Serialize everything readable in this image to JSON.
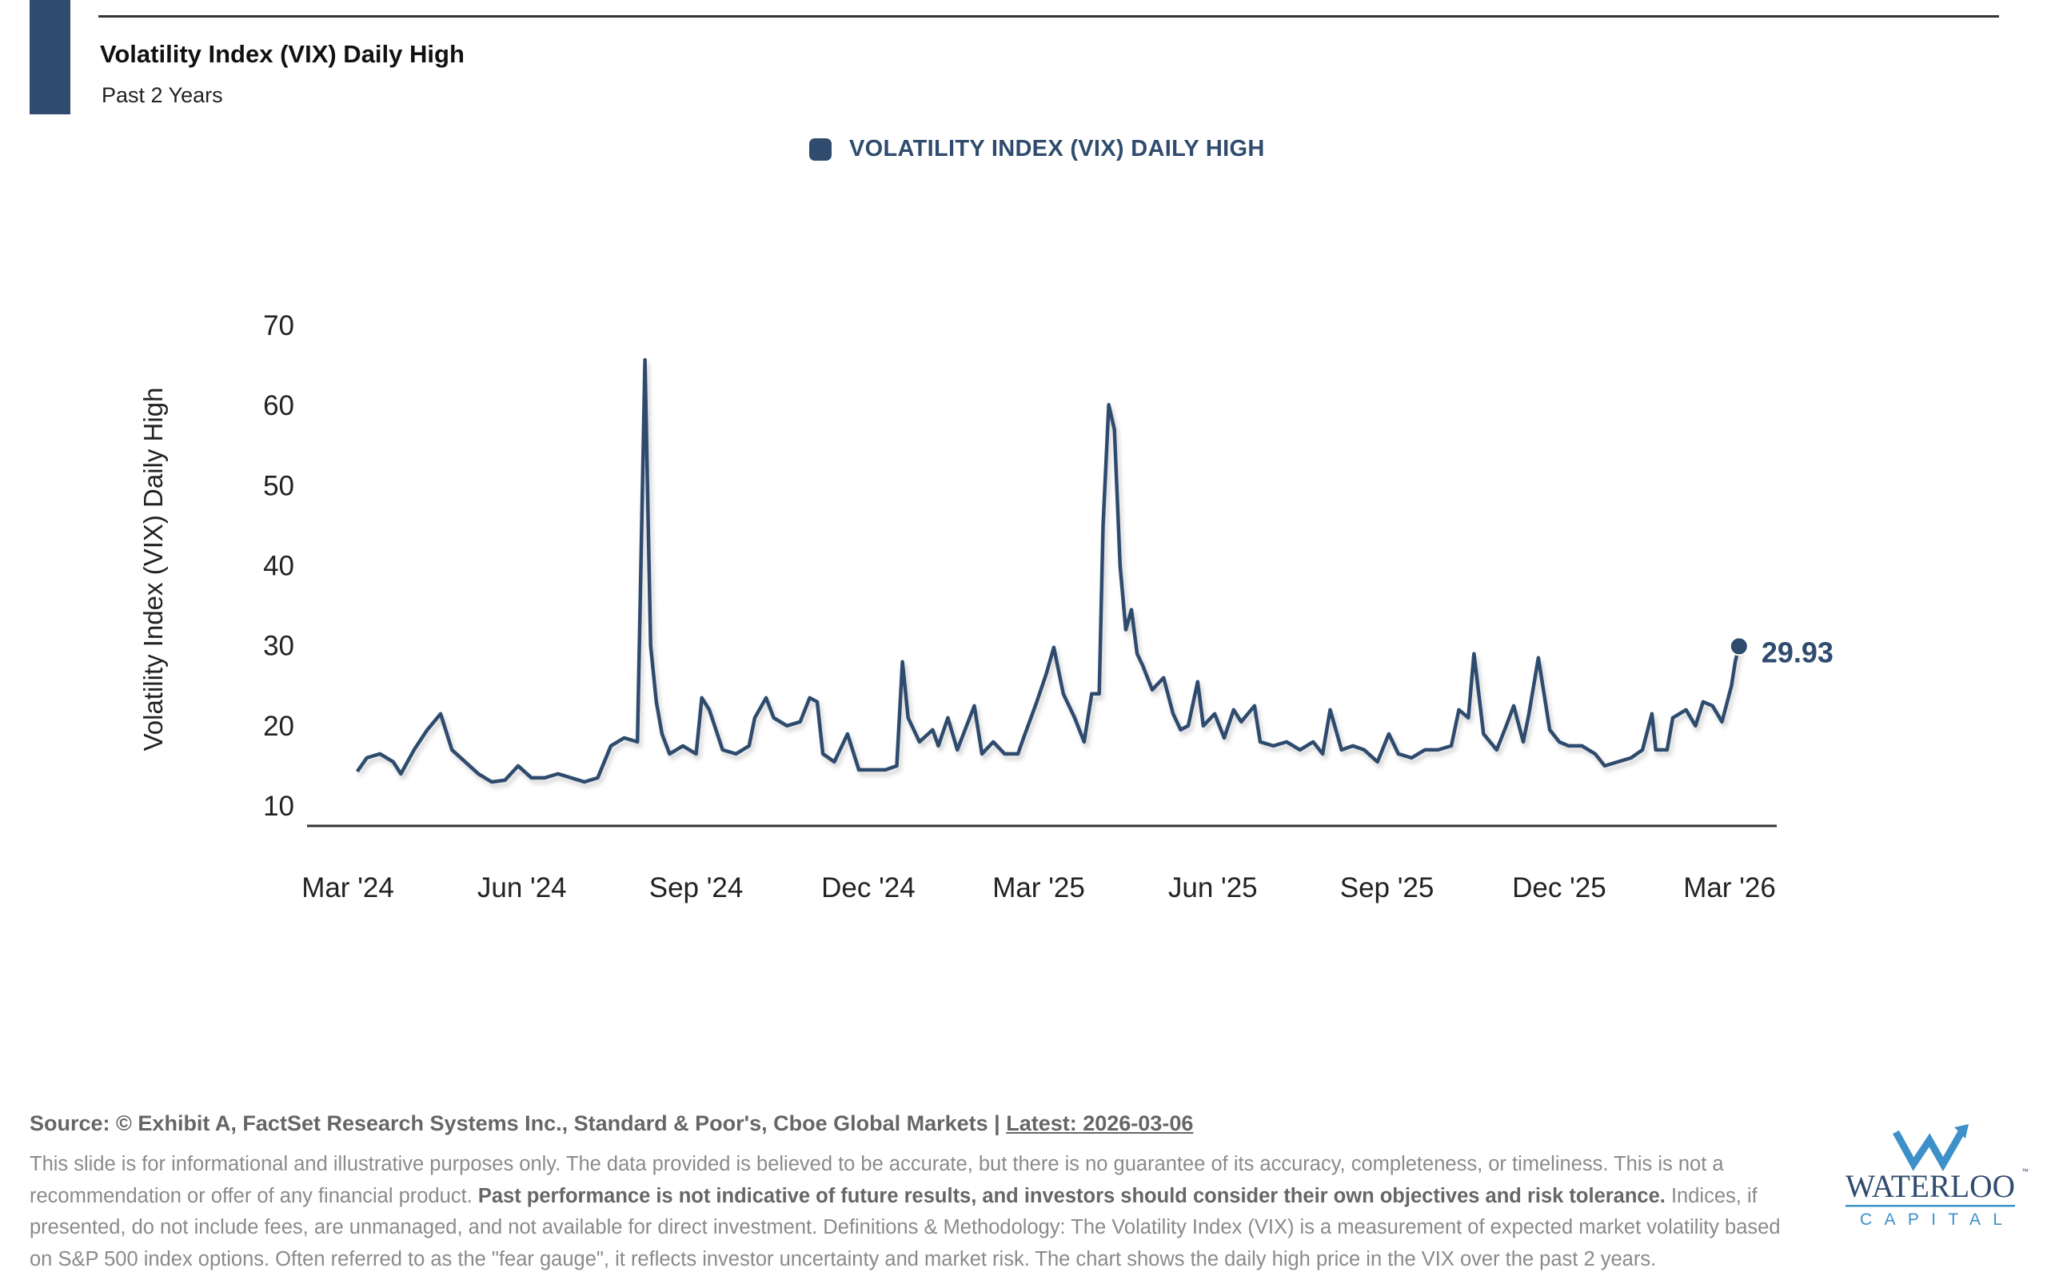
{
  "header": {
    "title": "Volatility Index (VIX) Daily High",
    "subtitle": "Past 2 Years"
  },
  "legend": {
    "label": "VOLATILITY INDEX (VIX) DAILY HIGH"
  },
  "colors": {
    "series": "#2f4b6e",
    "accent": "#2f4b6e",
    "logo_light": "#3e90c8"
  },
  "chart_data": {
    "type": "line",
    "title": "Volatility Index (VIX) Daily High",
    "subtitle": "Past 2 Years",
    "xlabel": "",
    "ylabel": "Volatility Index (VIX) Daily High",
    "ylim": [
      10,
      70
    ],
    "yticks": [
      "70",
      "60",
      "50",
      "40",
      "30",
      "20",
      "10"
    ],
    "xticks": [
      "Mar '24",
      "Jun '24",
      "Sep '24",
      "Dec '24",
      "Mar '25",
      "Jun '25",
      "Sep '25",
      "Dec '25",
      "Mar '26"
    ],
    "xtick_dates": [
      "2024-03-01",
      "2024-06-01",
      "2024-09-01",
      "2024-12-01",
      "2025-03-01",
      "2025-06-01",
      "2025-09-01",
      "2025-12-01",
      "2026-03-01"
    ],
    "grid": false,
    "legend_position": "top-center",
    "last_value_label": "29.93",
    "series": [
      {
        "name": "VOLATILITY INDEX (VIX) DAILY HIGH",
        "x": [
          "2024-03-06",
          "2024-03-11",
          "2024-03-18",
          "2024-03-25",
          "2024-03-29",
          "2024-04-05",
          "2024-04-12",
          "2024-04-19",
          "2024-04-25",
          "2024-05-02",
          "2024-05-09",
          "2024-05-16",
          "2024-05-23",
          "2024-05-30",
          "2024-06-06",
          "2024-06-13",
          "2024-06-20",
          "2024-06-27",
          "2024-07-04",
          "2024-07-11",
          "2024-07-18",
          "2024-07-25",
          "2024-08-01",
          "2024-08-05",
          "2024-08-08",
          "2024-08-11",
          "2024-08-14",
          "2024-08-18",
          "2024-08-25",
          "2024-09-01",
          "2024-09-04",
          "2024-09-08",
          "2024-09-15",
          "2024-09-22",
          "2024-09-29",
          "2024-10-02",
          "2024-10-08",
          "2024-10-12",
          "2024-10-19",
          "2024-10-26",
          "2024-10-31",
          "2024-11-04",
          "2024-11-07",
          "2024-11-13",
          "2024-11-20",
          "2024-11-26",
          "2024-12-03",
          "2024-12-10",
          "2024-12-16",
          "2024-12-19",
          "2024-12-22",
          "2024-12-28",
          "2025-01-04",
          "2025-01-07",
          "2025-01-12",
          "2025-01-17",
          "2025-01-26",
          "2025-01-30",
          "2025-02-05",
          "2025-02-11",
          "2025-02-18",
          "2025-02-21",
          "2025-02-28",
          "2025-03-05",
          "2025-03-09",
          "2025-03-14",
          "2025-03-20",
          "2025-03-25",
          "2025-03-29",
          "2025-04-02",
          "2025-04-04",
          "2025-04-07",
          "2025-04-10",
          "2025-04-13",
          "2025-04-16",
          "2025-04-19",
          "2025-04-22",
          "2025-04-25",
          "2025-04-30",
          "2025-05-06",
          "2025-05-11",
          "2025-05-15",
          "2025-05-19",
          "2025-05-24",
          "2025-05-27",
          "2025-06-02",
          "2025-06-07",
          "2025-06-12",
          "2025-06-16",
          "2025-06-23",
          "2025-06-26",
          "2025-07-03",
          "2025-07-10",
          "2025-07-17",
          "2025-07-24",
          "2025-07-29",
          "2025-08-02",
          "2025-08-08",
          "2025-08-14",
          "2025-08-20",
          "2025-08-27",
          "2025-09-02",
          "2025-09-07",
          "2025-09-14",
          "2025-09-21",
          "2025-09-28",
          "2025-10-05",
          "2025-10-09",
          "2025-10-14",
          "2025-10-17",
          "2025-10-22",
          "2025-10-29",
          "2025-11-03",
          "2025-11-07",
          "2025-11-12",
          "2025-11-15",
          "2025-11-20",
          "2025-11-26",
          "2025-12-01",
          "2025-12-06",
          "2025-12-13",
          "2025-12-20",
          "2025-12-25",
          "2026-01-01",
          "2026-01-08",
          "2026-01-14",
          "2026-01-19",
          "2026-01-21",
          "2026-01-27",
          "2026-01-30",
          "2026-02-06",
          "2026-02-11",
          "2026-02-15",
          "2026-02-20",
          "2026-02-25",
          "2026-03-02",
          "2026-03-04",
          "2026-03-06"
        ],
        "y": [
          14.3,
          16,
          16.5,
          15.5,
          14,
          17,
          19.5,
          21.5,
          17,
          15.5,
          14,
          13,
          13.2,
          15,
          13.5,
          13.5,
          14,
          13.5,
          13,
          13.5,
          17.5,
          18.5,
          18,
          65.7,
          30,
          23,
          19,
          16.5,
          17.5,
          16.5,
          23.5,
          22,
          17,
          16.5,
          17.5,
          21,
          23.5,
          21,
          20,
          20.5,
          23.5,
          23,
          16.5,
          15.5,
          19,
          14.5,
          14.5,
          14.5,
          15,
          28,
          21,
          18,
          19.5,
          17.5,
          21,
          17,
          22.5,
          16.5,
          18,
          16.5,
          16.5,
          18.5,
          23,
          26.5,
          29.8,
          24,
          21,
          18,
          24,
          24,
          45,
          60.1,
          57,
          40,
          32,
          34.5,
          29,
          27.5,
          24.5,
          26,
          21.5,
          19.5,
          20,
          25.5,
          20,
          21.5,
          18.5,
          22,
          20.5,
          22.5,
          18,
          17.5,
          18,
          17,
          18,
          16.5,
          22,
          17,
          17.5,
          17,
          15.5,
          19,
          16.5,
          16,
          17,
          17,
          17.5,
          22,
          21,
          29,
          19,
          17,
          20,
          22.5,
          18,
          21.5,
          28.5,
          19.5,
          18,
          17.5,
          17.5,
          16.5,
          15,
          15.5,
          16,
          17,
          21.5,
          17,
          17,
          21,
          22,
          20,
          23,
          22.5,
          20.5,
          25,
          28,
          29.93
        ]
      }
    ]
  },
  "footer": {
    "source": "Source: © Exhibit A, FactSet Research Systems Inc., Standard & Poor's, Cboe Global Markets | ",
    "latest": "Latest: 2026-03-06",
    "disclaimer_1": "This slide is for informational and illustrative purposes only. The data provided is believed to be accurate, but there is no guarantee of its accuracy, completeness, or timeliness. This is not a recommendation or offer of any financial product. ",
    "disclaimer_bold": "Past performance is not indicative of future results, and investors should consider their own objectives and risk tolerance.",
    "disclaimer_2": " Indices, if presented, do not include fees, are unmanaged, and not available for direct investment. Definitions & Methodology: The Volatility Index (VIX) is a measurement of expected market volatility based on S&P 500 index options. Often referred to as the \"fear gauge\", it reflects investor uncertainty and market risk. The chart shows the daily high price in the VIX over the past 2 years."
  },
  "logo": {
    "word": "WATERLOO",
    "sub": "CAPITAL",
    "tm": "™"
  }
}
